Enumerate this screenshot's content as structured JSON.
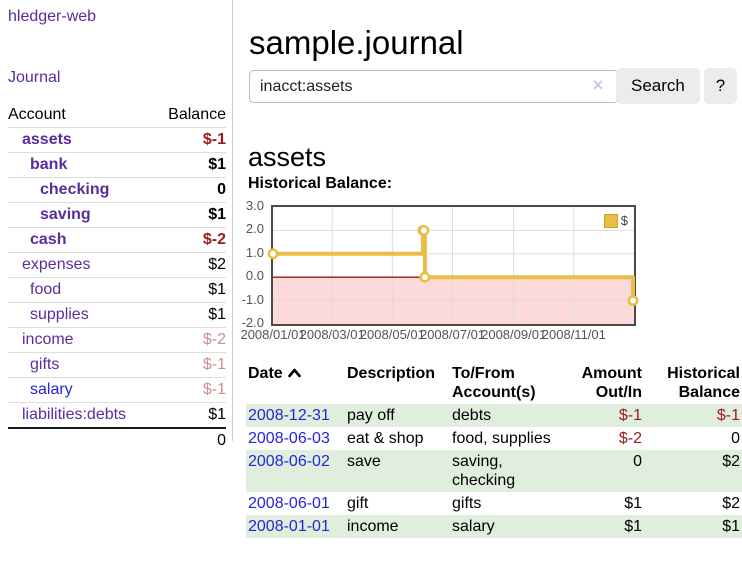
{
  "app": {
    "title": "hledger-web",
    "nav_journal": "Journal"
  },
  "sidebar": {
    "headers": {
      "account": "Account",
      "balance": "Balance"
    },
    "accounts": [
      {
        "name": "assets",
        "balance": "$-1"
      },
      {
        "name": "bank",
        "balance": "$1"
      },
      {
        "name": "checking",
        "balance": "0"
      },
      {
        "name": "saving",
        "balance": "$1"
      },
      {
        "name": "cash",
        "balance": "$-2"
      },
      {
        "name": "expenses",
        "balance": "$2"
      },
      {
        "name": "food",
        "balance": "$1"
      },
      {
        "name": "supplies",
        "balance": "$1"
      },
      {
        "name": "income",
        "balance": "$-2"
      },
      {
        "name": "gifts",
        "balance": "$-1"
      },
      {
        "name": "salary",
        "balance": "$-1"
      },
      {
        "name": "liabilities:debts",
        "balance": "$1"
      }
    ],
    "total": "0"
  },
  "header": {
    "title": "sample.journal"
  },
  "search": {
    "value": "inacct:assets",
    "clear_icon": "×",
    "button": "Search",
    "help_button": "?"
  },
  "main": {
    "account_heading": "assets",
    "chart_label": "Historical Balance:"
  },
  "chart_data": {
    "type": "line",
    "step": true,
    "title": "Historical Balance",
    "xlabel": "",
    "ylabel": "",
    "series": [
      {
        "name": "$",
        "color": "#e9be45",
        "points": [
          [
            "2008/01/01",
            1
          ],
          [
            "2008/06/01",
            2
          ],
          [
            "2008/06/02",
            2
          ],
          [
            "2008/06/03",
            0
          ],
          [
            "2008/12/31",
            -1
          ]
        ]
      }
    ],
    "x_range": [
      "2008/01/01",
      "2009/01/01"
    ],
    "y_range": [
      -2,
      3
    ],
    "x_ticks": [
      "2008/01/01",
      "2008/03/01",
      "2008/05/01",
      "2008/07/01",
      "2008/09/01",
      "2008/11/01"
    ],
    "y_ticks": [
      3,
      2,
      1,
      0,
      -1,
      -2
    ],
    "y_tick_labels": [
      "3.0",
      "2.0",
      "1.0",
      "0.0",
      "-1.0",
      "-2.0"
    ],
    "grid": true,
    "grid_color": "#dddddd",
    "zero_line_color": "#8f1d1d",
    "negative_region_color": "#fcdada",
    "legend_position": "top-right"
  },
  "register": {
    "columns": [
      {
        "line1": "Date",
        "line2": ""
      },
      {
        "line1": "Description",
        "line2": ""
      },
      {
        "line1": "To/From",
        "line2": "Account(s)"
      },
      {
        "line1": "Amount",
        "line2": "Out/In"
      },
      {
        "line1": "Historical",
        "line2": "Balance"
      }
    ],
    "rows": [
      {
        "date": "2008-12-31",
        "description": "pay off",
        "accounts": "debts",
        "amount": "$-1",
        "balance": "$-1"
      },
      {
        "date": "2008-06-03",
        "description": "eat & shop",
        "accounts": "food, supplies",
        "amount": "$-2",
        "balance": "0"
      },
      {
        "date": "2008-06-02",
        "description": "save",
        "accounts": "saving,\nchecking",
        "amount": "0",
        "balance": "$2"
      },
      {
        "date": "2008-06-01",
        "description": "gift",
        "accounts": "gifts",
        "amount": "$1",
        "balance": "$2"
      },
      {
        "date": "2008-01-01",
        "description": "income",
        "accounts": "salary",
        "amount": "$1",
        "balance": "$1"
      }
    ]
  }
}
